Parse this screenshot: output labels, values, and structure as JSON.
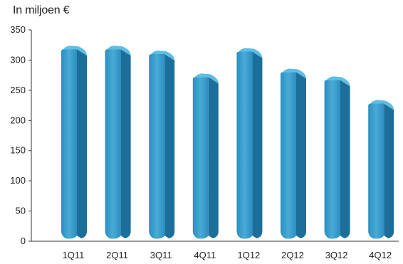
{
  "chart_data": {
    "type": "bar",
    "ylabel": "In miljoen €",
    "categories": [
      "1Q11",
      "2Q11",
      "3Q11",
      "4Q11",
      "1Q12",
      "2Q12",
      "3Q12",
      "4Q12"
    ],
    "values": [
      318,
      318,
      310,
      272,
      314,
      280,
      267,
      228
    ],
    "ylim": [
      0,
      350
    ],
    "yticks": [
      0,
      50,
      100,
      150,
      200,
      250,
      300,
      350
    ],
    "grid": false,
    "colors": {
      "front": "#2a8fc0",
      "top": "#5fbde3",
      "side": "#1b6f9a",
      "highlight": "#4aaad6"
    }
  }
}
